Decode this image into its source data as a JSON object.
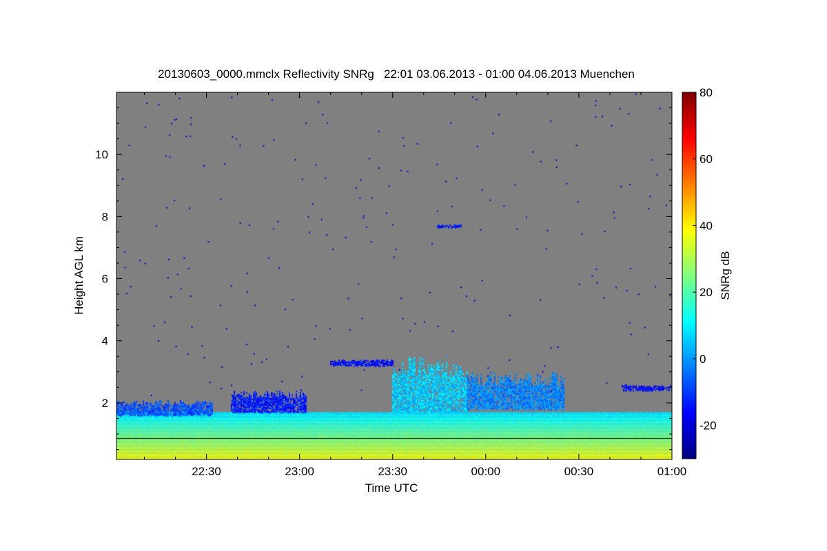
{
  "chart_data": {
    "type": "heatmap",
    "title": "20130603_0000.mmclx Reflectivity SNRg   22:01 03.06.2013 - 01:00 04.06.2013 Muenchen",
    "xlabel": "Time UTC",
    "ylabel": "Height AGL km",
    "colorbar_label": "SNRg dB",
    "x_range_minutes_from_2200": [
      1,
      180
    ],
    "y_range_km": [
      0.18,
      12.0
    ],
    "x_ticks": [
      {
        "min": 30,
        "label": "22:30"
      },
      {
        "min": 60,
        "label": "23:00"
      },
      {
        "min": 90,
        "label": "23:30"
      },
      {
        "min": 120,
        "label": "00:00"
      },
      {
        "min": 150,
        "label": "00:30"
      },
      {
        "min": 180,
        "label": "01:00"
      }
    ],
    "y_ticks": [
      {
        "v": 2,
        "label": "2"
      },
      {
        "v": 4,
        "label": "4"
      },
      {
        "v": 6,
        "label": "6"
      },
      {
        "v": 8,
        "label": "8"
      },
      {
        "v": 10,
        "label": "10"
      }
    ],
    "colorbar_range": [
      -30,
      80
    ],
    "colorbar_ticks": [
      {
        "v": -20,
        "label": "-20"
      },
      {
        "v": 0,
        "label": "0"
      },
      {
        "v": 20,
        "label": "20"
      },
      {
        "v": 40,
        "label": "40"
      },
      {
        "v": 60,
        "label": "60"
      },
      {
        "v": 80,
        "label": "80"
      }
    ],
    "colormap": "jet",
    "background_color": "#808080",
    "reference_line_km": 0.87,
    "features": [
      {
        "name": "boundary-layer-echo",
        "t": [
          1,
          180
        ],
        "h": [
          0.18,
          1.7
        ],
        "snr_bottom": 38,
        "snr_top": 8
      },
      {
        "name": "low-cloud-early",
        "t": [
          1,
          32
        ],
        "h": [
          1.6,
          2.1
        ],
        "snr": -8
      },
      {
        "name": "low-cloud-patches",
        "t": [
          38,
          62
        ],
        "h": [
          1.7,
          2.4
        ],
        "snr": -14
      },
      {
        "name": "mid-cloud-layer",
        "t": [
          70,
          90
        ],
        "h": [
          3.2,
          3.4
        ],
        "snr": -16
      },
      {
        "name": "convective-cell",
        "t": [
          90,
          114
        ],
        "h": [
          1.7,
          3.5
        ],
        "snr": 6
      },
      {
        "name": "convective-tail",
        "t": [
          114,
          145
        ],
        "h": [
          1.8,
          3.0
        ],
        "snr": -2
      },
      {
        "name": "late-cloud",
        "t": [
          164,
          180
        ],
        "h": [
          2.4,
          2.6
        ],
        "snr": -16
      },
      {
        "name": "high-echo",
        "t": [
          104,
          112
        ],
        "h": [
          7.65,
          7.75
        ],
        "snr": -15
      }
    ]
  }
}
